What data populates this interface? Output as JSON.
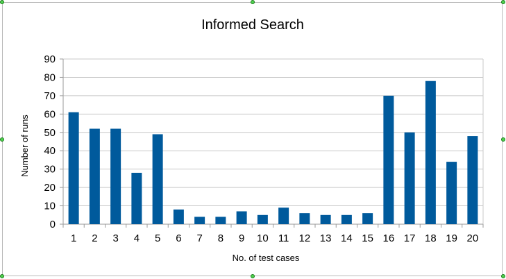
{
  "chart_data": {
    "type": "bar",
    "title": "Informed Search",
    "xlabel": "No. of test cases",
    "ylabel": "Number of runs",
    "categories": [
      "1",
      "2",
      "3",
      "4",
      "5",
      "6",
      "7",
      "8",
      "9",
      "10",
      "11",
      "12",
      "13",
      "14",
      "15",
      "16",
      "17",
      "18",
      "19",
      "20"
    ],
    "values": [
      61,
      52,
      52,
      28,
      49,
      8,
      4,
      4,
      7,
      5,
      9,
      6,
      5,
      5,
      6,
      70,
      50,
      78,
      34,
      48
    ],
    "ylim": [
      0,
      90
    ],
    "yticks": [
      0,
      10,
      20,
      30,
      40,
      50,
      60,
      70,
      80,
      90
    ],
    "grid": "horizontal",
    "bar_color": "#005a9c",
    "grid_color": "#c8c8c8"
  }
}
